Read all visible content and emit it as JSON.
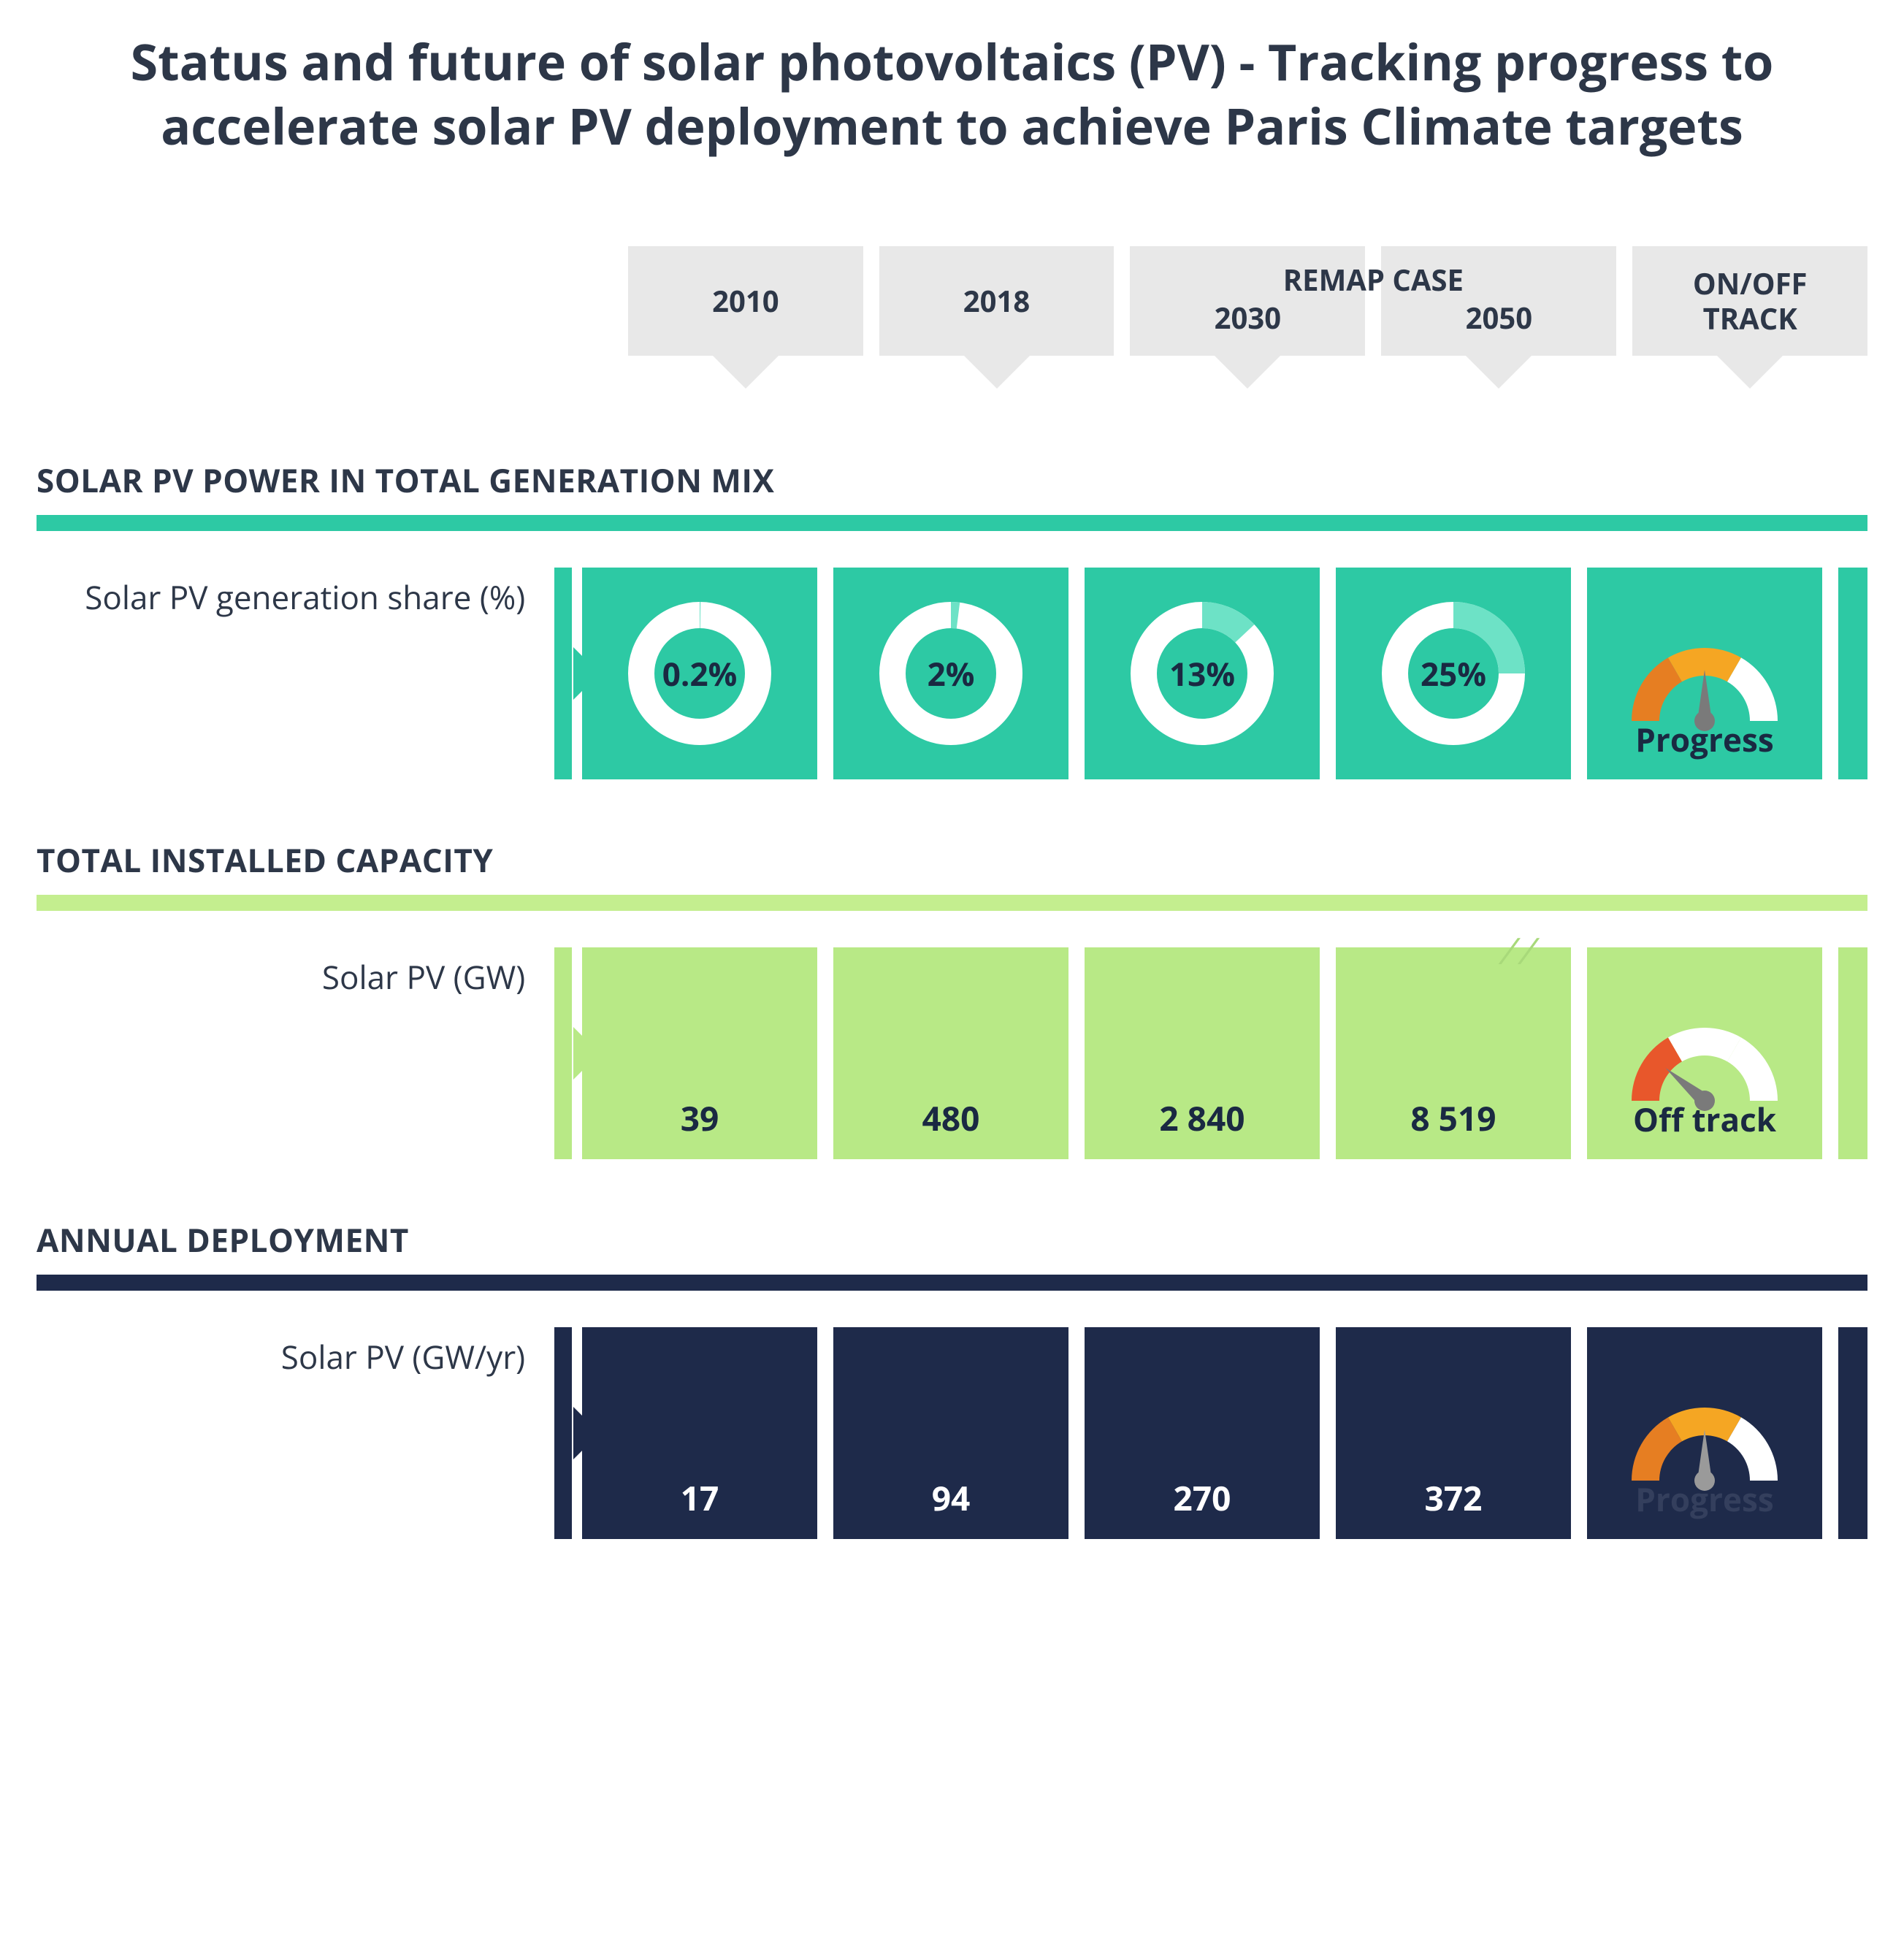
{
  "title": "Status and future of solar photovoltaics (PV) - Tracking progress to accelerate solar PV deployment to achieve Paris Climate targets",
  "header": {
    "col1": "2010",
    "col2": "2018",
    "remap_label": "REMAP CASE",
    "col3": "2030",
    "col4": "2050",
    "col5": "ON/OFF\nTRACK"
  },
  "sections": {
    "generation_mix": {
      "heading": "SOLAR PV POWER IN TOTAL GENERATION MIX",
      "bar_color": "#2dc9a4",
      "cell_color": "#2dc9a4",
      "row": {
        "label": "Solar PV generation share (%)",
        "type": "donut",
        "donut_track_color": "#ffffff",
        "donut_fill_color": "#6de2c6",
        "donut_bg": "#2dc9a4",
        "text_color": "#1a2942",
        "values": [
          {
            "label": "0.2%",
            "pct": 0.2
          },
          {
            "label": "2%",
            "pct": 2
          },
          {
            "label": "13%",
            "pct": 13
          },
          {
            "label": "25%",
            "pct": 25
          }
        ],
        "status": {
          "label": "Progress",
          "label_style": "dark",
          "needle_angle": 90,
          "segments": [
            {
              "color": "#e67e22",
              "from": 180,
              "to": 240
            },
            {
              "color": "#f5a623",
              "from": 240,
              "to": 300
            },
            {
              "color": "#ffffff",
              "from": 300,
              "to": 360
            }
          ],
          "needle_color": "#7a7a7a"
        }
      }
    },
    "installed_capacity": {
      "heading": "TOTAL INSTALLED CAPACITY",
      "bar_color": "#c4ee8f",
      "cell_color": "#b8e986",
      "row": {
        "label": "Solar PV (GW)",
        "type": "value",
        "text_color": "#1a2942",
        "values": [
          "39",
          "480",
          "2 840",
          "8 519"
        ],
        "status": {
          "label": "Off track",
          "label_style": "dark",
          "needle_angle": 40,
          "segments": [
            {
              "color": "#e8572b",
              "from": 180,
              "to": 240
            },
            {
              "color": "#ffffff",
              "from": 240,
              "to": 300
            },
            {
              "color": "#ffffff",
              "from": 300,
              "to": 360
            }
          ],
          "needle_color": "#7a7a7a"
        },
        "deco_slashes": true,
        "deco_color": "#a8d97a"
      }
    },
    "annual_deployment": {
      "heading": "ANNUAL DEPLOYMENT",
      "bar_color": "#1e2a4a",
      "cell_color": "#1e2a4a",
      "row": {
        "label": "Solar PV (GW/yr)",
        "type": "value",
        "text_color": "#ffffff",
        "values": [
          "17",
          "94",
          "270",
          "372"
        ],
        "status": {
          "label": "Progress",
          "label_style": "faded",
          "needle_angle": 90,
          "segments": [
            {
              "color": "#e67e22",
              "from": 180,
              "to": 240
            },
            {
              "color": "#f5a623",
              "from": 240,
              "to": 300
            },
            {
              "color": "#ffffff",
              "from": 300,
              "to": 360
            }
          ],
          "needle_color": "#9a9a9a"
        }
      }
    }
  }
}
